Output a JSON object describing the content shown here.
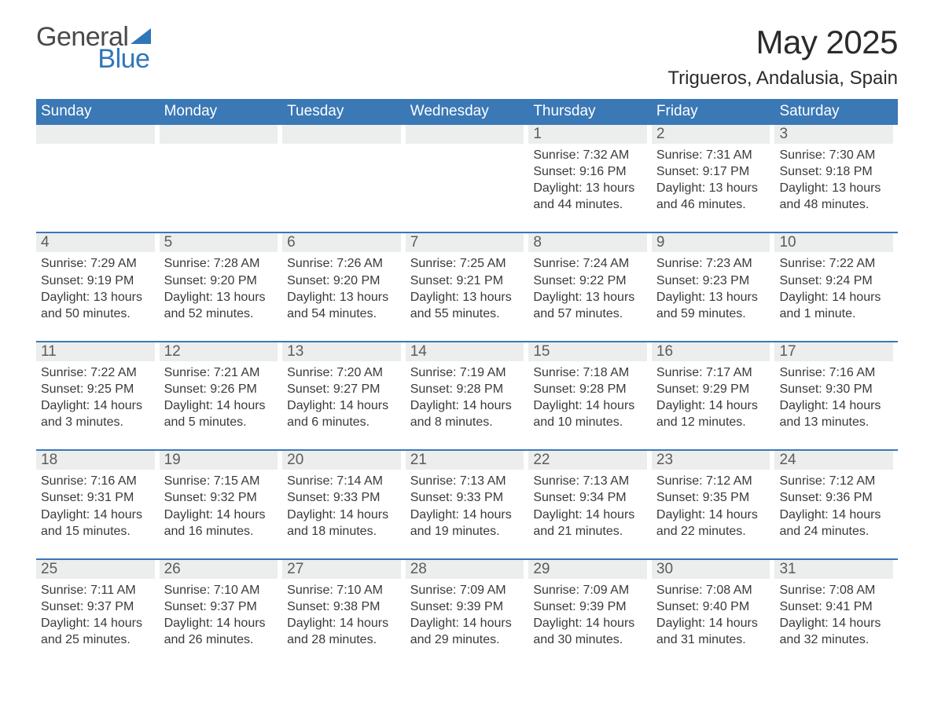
{
  "logo": {
    "text_general": "General",
    "text_blue": "Blue",
    "triangle_color": "#2f76b9"
  },
  "title": {
    "month": "May 2025",
    "location": "Trigueros, Andalusia, Spain",
    "title_fontsize": 42,
    "location_fontsize": 24,
    "title_color": "#2b2b2b"
  },
  "colors": {
    "header_bg": "#3a78b6",
    "header_text": "#ffffff",
    "daynum_bg": "#eceded",
    "daynum_text": "#5c5c5c",
    "body_text": "#3a3a3a",
    "week_border": "#3a78b6",
    "page_bg": "#ffffff"
  },
  "fonts": {
    "family": "Arial, Helvetica, sans-serif",
    "dow_size": 19,
    "daynum_size": 19,
    "body_size": 16
  },
  "days_of_week": [
    "Sunday",
    "Monday",
    "Tuesday",
    "Wednesday",
    "Thursday",
    "Friday",
    "Saturday"
  ],
  "weeks": [
    [
      {
        "blank": true
      },
      {
        "blank": true
      },
      {
        "blank": true
      },
      {
        "blank": true
      },
      {
        "day": "1",
        "sunrise": "Sunrise: 7:32 AM",
        "sunset": "Sunset: 9:16 PM",
        "dl1": "Daylight: 13 hours",
        "dl2": "and 44 minutes."
      },
      {
        "day": "2",
        "sunrise": "Sunrise: 7:31 AM",
        "sunset": "Sunset: 9:17 PM",
        "dl1": "Daylight: 13 hours",
        "dl2": "and 46 minutes."
      },
      {
        "day": "3",
        "sunrise": "Sunrise: 7:30 AM",
        "sunset": "Sunset: 9:18 PM",
        "dl1": "Daylight: 13 hours",
        "dl2": "and 48 minutes."
      }
    ],
    [
      {
        "day": "4",
        "sunrise": "Sunrise: 7:29 AM",
        "sunset": "Sunset: 9:19 PM",
        "dl1": "Daylight: 13 hours",
        "dl2": "and 50 minutes."
      },
      {
        "day": "5",
        "sunrise": "Sunrise: 7:28 AM",
        "sunset": "Sunset: 9:20 PM",
        "dl1": "Daylight: 13 hours",
        "dl2": "and 52 minutes."
      },
      {
        "day": "6",
        "sunrise": "Sunrise: 7:26 AM",
        "sunset": "Sunset: 9:20 PM",
        "dl1": "Daylight: 13 hours",
        "dl2": "and 54 minutes."
      },
      {
        "day": "7",
        "sunrise": "Sunrise: 7:25 AM",
        "sunset": "Sunset: 9:21 PM",
        "dl1": "Daylight: 13 hours",
        "dl2": "and 55 minutes."
      },
      {
        "day": "8",
        "sunrise": "Sunrise: 7:24 AM",
        "sunset": "Sunset: 9:22 PM",
        "dl1": "Daylight: 13 hours",
        "dl2": "and 57 minutes."
      },
      {
        "day": "9",
        "sunrise": "Sunrise: 7:23 AM",
        "sunset": "Sunset: 9:23 PM",
        "dl1": "Daylight: 13 hours",
        "dl2": "and 59 minutes."
      },
      {
        "day": "10",
        "sunrise": "Sunrise: 7:22 AM",
        "sunset": "Sunset: 9:24 PM",
        "dl1": "Daylight: 14 hours",
        "dl2": "and 1 minute."
      }
    ],
    [
      {
        "day": "11",
        "sunrise": "Sunrise: 7:22 AM",
        "sunset": "Sunset: 9:25 PM",
        "dl1": "Daylight: 14 hours",
        "dl2": "and 3 minutes."
      },
      {
        "day": "12",
        "sunrise": "Sunrise: 7:21 AM",
        "sunset": "Sunset: 9:26 PM",
        "dl1": "Daylight: 14 hours",
        "dl2": "and 5 minutes."
      },
      {
        "day": "13",
        "sunrise": "Sunrise: 7:20 AM",
        "sunset": "Sunset: 9:27 PM",
        "dl1": "Daylight: 14 hours",
        "dl2": "and 6 minutes."
      },
      {
        "day": "14",
        "sunrise": "Sunrise: 7:19 AM",
        "sunset": "Sunset: 9:28 PM",
        "dl1": "Daylight: 14 hours",
        "dl2": "and 8 minutes."
      },
      {
        "day": "15",
        "sunrise": "Sunrise: 7:18 AM",
        "sunset": "Sunset: 9:28 PM",
        "dl1": "Daylight: 14 hours",
        "dl2": "and 10 minutes."
      },
      {
        "day": "16",
        "sunrise": "Sunrise: 7:17 AM",
        "sunset": "Sunset: 9:29 PM",
        "dl1": "Daylight: 14 hours",
        "dl2": "and 12 minutes."
      },
      {
        "day": "17",
        "sunrise": "Sunrise: 7:16 AM",
        "sunset": "Sunset: 9:30 PM",
        "dl1": "Daylight: 14 hours",
        "dl2": "and 13 minutes."
      }
    ],
    [
      {
        "day": "18",
        "sunrise": "Sunrise: 7:16 AM",
        "sunset": "Sunset: 9:31 PM",
        "dl1": "Daylight: 14 hours",
        "dl2": "and 15 minutes."
      },
      {
        "day": "19",
        "sunrise": "Sunrise: 7:15 AM",
        "sunset": "Sunset: 9:32 PM",
        "dl1": "Daylight: 14 hours",
        "dl2": "and 16 minutes."
      },
      {
        "day": "20",
        "sunrise": "Sunrise: 7:14 AM",
        "sunset": "Sunset: 9:33 PM",
        "dl1": "Daylight: 14 hours",
        "dl2": "and 18 minutes."
      },
      {
        "day": "21",
        "sunrise": "Sunrise: 7:13 AM",
        "sunset": "Sunset: 9:33 PM",
        "dl1": "Daylight: 14 hours",
        "dl2": "and 19 minutes."
      },
      {
        "day": "22",
        "sunrise": "Sunrise: 7:13 AM",
        "sunset": "Sunset: 9:34 PM",
        "dl1": "Daylight: 14 hours",
        "dl2": "and 21 minutes."
      },
      {
        "day": "23",
        "sunrise": "Sunrise: 7:12 AM",
        "sunset": "Sunset: 9:35 PM",
        "dl1": "Daylight: 14 hours",
        "dl2": "and 22 minutes."
      },
      {
        "day": "24",
        "sunrise": "Sunrise: 7:12 AM",
        "sunset": "Sunset: 9:36 PM",
        "dl1": "Daylight: 14 hours",
        "dl2": "and 24 minutes."
      }
    ],
    [
      {
        "day": "25",
        "sunrise": "Sunrise: 7:11 AM",
        "sunset": "Sunset: 9:37 PM",
        "dl1": "Daylight: 14 hours",
        "dl2": "and 25 minutes."
      },
      {
        "day": "26",
        "sunrise": "Sunrise: 7:10 AM",
        "sunset": "Sunset: 9:37 PM",
        "dl1": "Daylight: 14 hours",
        "dl2": "and 26 minutes."
      },
      {
        "day": "27",
        "sunrise": "Sunrise: 7:10 AM",
        "sunset": "Sunset: 9:38 PM",
        "dl1": "Daylight: 14 hours",
        "dl2": "and 28 minutes."
      },
      {
        "day": "28",
        "sunrise": "Sunrise: 7:09 AM",
        "sunset": "Sunset: 9:39 PM",
        "dl1": "Daylight: 14 hours",
        "dl2": "and 29 minutes."
      },
      {
        "day": "29",
        "sunrise": "Sunrise: 7:09 AM",
        "sunset": "Sunset: 9:39 PM",
        "dl1": "Daylight: 14 hours",
        "dl2": "and 30 minutes."
      },
      {
        "day": "30",
        "sunrise": "Sunrise: 7:08 AM",
        "sunset": "Sunset: 9:40 PM",
        "dl1": "Daylight: 14 hours",
        "dl2": "and 31 minutes."
      },
      {
        "day": "31",
        "sunrise": "Sunrise: 7:08 AM",
        "sunset": "Sunset: 9:41 PM",
        "dl1": "Daylight: 14 hours",
        "dl2": "and 32 minutes."
      }
    ]
  ]
}
